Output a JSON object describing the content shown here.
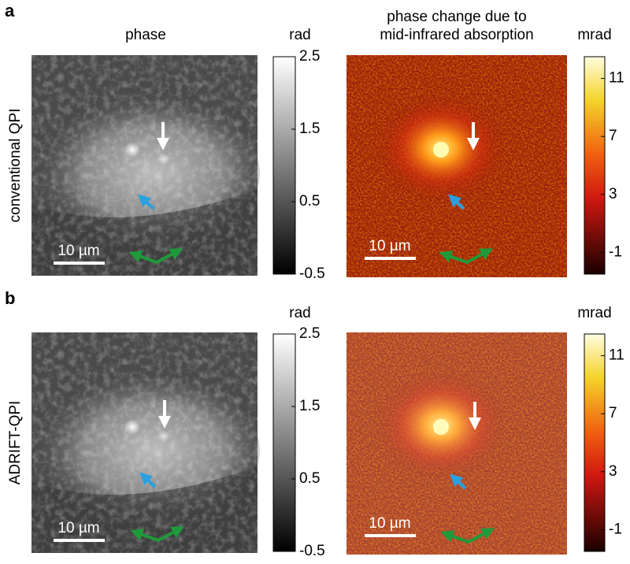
{
  "column_titles": [
    [
      "phase"
    ],
    [
      "phase change due to",
      "mid-infrared absorption"
    ]
  ],
  "colorbars": [
    {
      "unit": "rad",
      "lim": [
        -0.5,
        2.5
      ],
      "ticks": [
        2.5,
        1.5,
        0.5,
        -0.5
      ]
    },
    {
      "unit": "mrad",
      "lim": [
        -2.5,
        12.5
      ],
      "ticks": [
        11,
        7,
        3,
        -1
      ]
    }
  ],
  "rows": [
    {
      "label": "a",
      "title": "conventional QPI",
      "scale_bars": [
        "10 µm",
        "10 µm"
      ]
    },
    {
      "label": "b",
      "title": "ADRIFT-QPI",
      "scale_bars": [
        "10 µm",
        "10 µm"
      ]
    }
  ]
}
